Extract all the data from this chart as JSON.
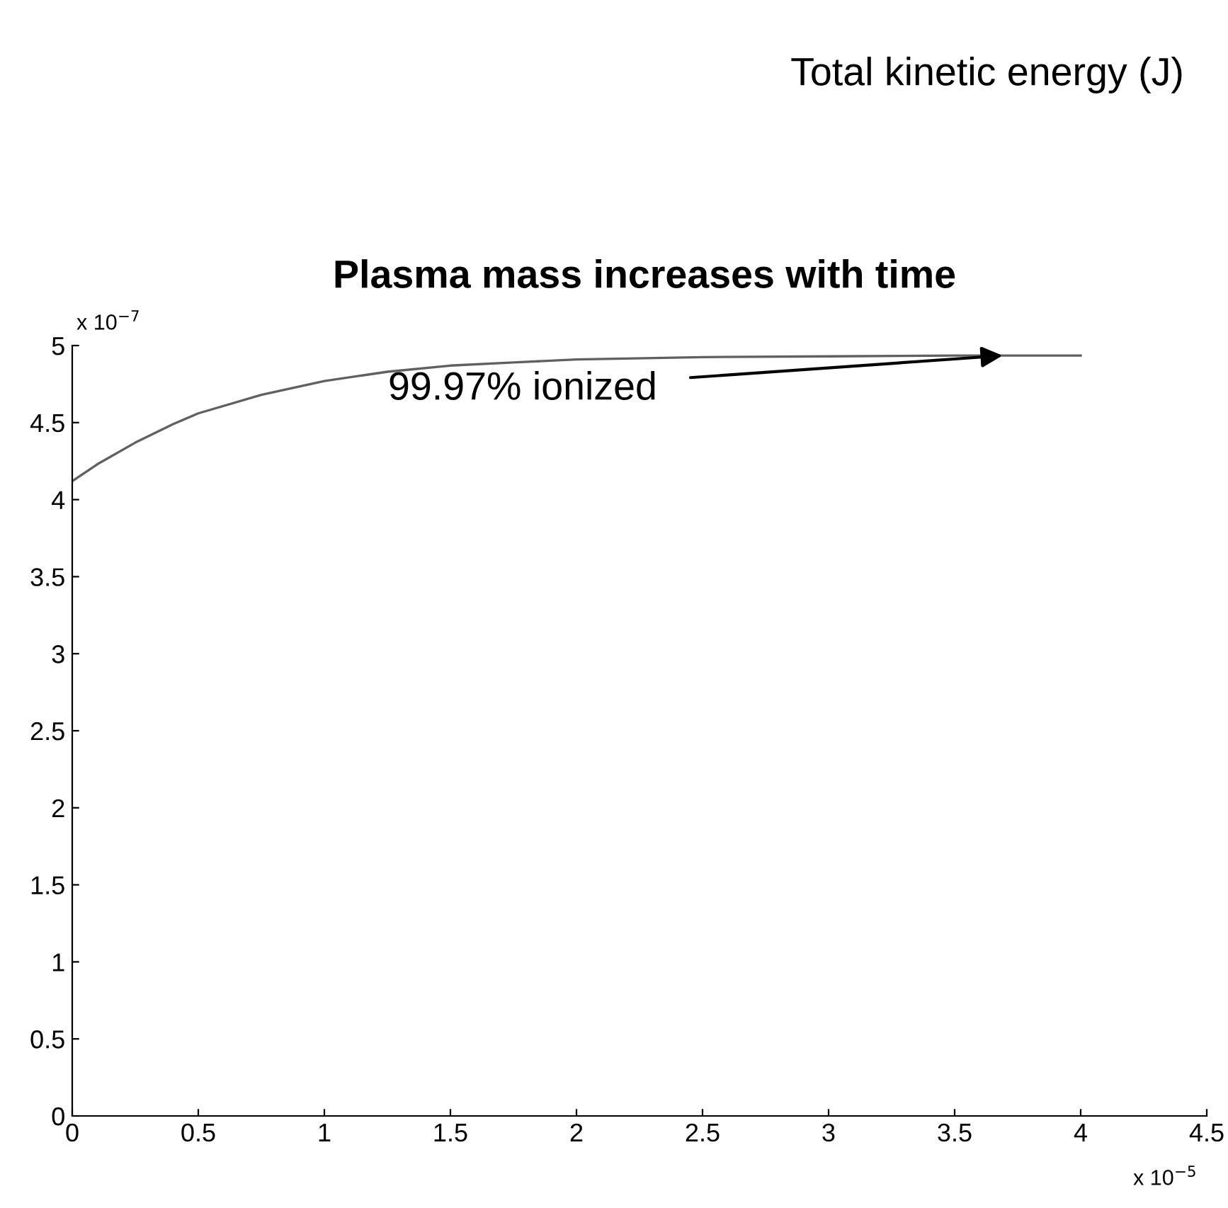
{
  "chart_data": {
    "type": "line",
    "title": "Plasma mass increases with time",
    "x": [
      0,
      0.1,
      0.25,
      0.4,
      0.5,
      0.75,
      1.0,
      1.25,
      1.5,
      1.75,
      2.0,
      2.5,
      3.0,
      3.5,
      4.0
    ],
    "series": [
      {
        "color": "#606060",
        "values": [
          4.12,
          4.23,
          4.37,
          4.49,
          4.56,
          4.68,
          4.77,
          4.83,
          4.87,
          4.89,
          4.91,
          4.925,
          4.93,
          4.935,
          4.935
        ]
      }
    ],
    "xlim": [
      0,
      4.5
    ],
    "xticks": [
      0,
      0.5,
      1,
      1.5,
      2,
      2.5,
      3,
      3.5,
      4,
      4.5
    ],
    "ylim": [
      0,
      5
    ],
    "yticks": [
      0,
      0.5,
      1,
      1.5,
      2,
      2.5,
      3,
      3.5,
      4,
      4.5,
      5
    ],
    "grid": false,
    "legend": false,
    "marker": "none",
    "line_style": "solid",
    "annotations": [
      {
        "text": "99.97% ionized",
        "x": 3.69,
        "y": 4.935
      },
      "x 10$^{−7}$",
      "x 10$^{−5}$",
      "Total kinetic energy (J)"
    ]
  }
}
